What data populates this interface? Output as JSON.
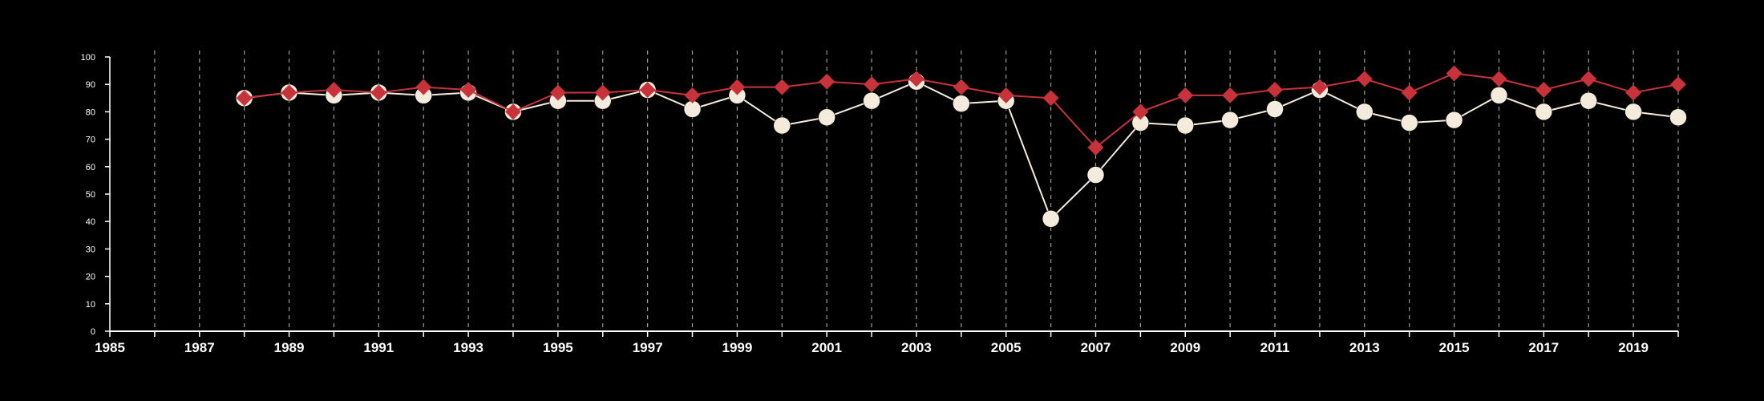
{
  "chart_data": {
    "type": "line",
    "title": "",
    "xlabel": "",
    "ylabel": "",
    "xlim": [
      1985,
      2020
    ],
    "ylim": [
      0,
      100
    ],
    "x_ticks": [
      "1985",
      "1987",
      "1989",
      "1991",
      "1993",
      "1995",
      "1997",
      "1999",
      "2001",
      "2003",
      "2005",
      "2007",
      "2009",
      "2011",
      "2013",
      "2015",
      "2017",
      "2019"
    ],
    "y_ticks": [
      "0",
      "10",
      "20",
      "30",
      "40",
      "50",
      "60",
      "70",
      "80",
      "90",
      "100"
    ],
    "grid": "vertical dashed lines at every year",
    "background": "#000000",
    "series": [
      {
        "color": "#c8323a",
        "marker": "diamond",
        "x": [
          1988,
          1989,
          1990,
          1991,
          1992,
          1993,
          1994,
          1995,
          1996,
          1997,
          1998,
          1999,
          2000,
          2001,
          2002,
          2003,
          2004,
          2005,
          2006,
          2007,
          2008,
          2009,
          2010,
          2011,
          2012,
          2013,
          2014,
          2015,
          2016,
          2017,
          2018,
          2019,
          2020
        ],
        "values": [
          85,
          87,
          88,
          87,
          89,
          88,
          80,
          87,
          87,
          88,
          86,
          89,
          89,
          91,
          90,
          92,
          89,
          86,
          85,
          67,
          80,
          86,
          86,
          88,
          89,
          92,
          87,
          94,
          92,
          88,
          92,
          87,
          90
        ]
      },
      {
        "color": "#f5ebdc",
        "marker": "circle",
        "x": [
          1988,
          1989,
          1990,
          1991,
          1992,
          1993,
          1994,
          1995,
          1996,
          1997,
          1998,
          1999,
          2000,
          2001,
          2002,
          2003,
          2004,
          2005,
          2006,
          2007,
          2008,
          2009,
          2010,
          2011,
          2012,
          2013,
          2014,
          2015,
          2016,
          2017,
          2018,
          2019,
          2020
        ],
        "values": [
          85,
          87,
          86,
          87,
          86,
          87,
          80,
          84,
          84,
          88,
          81,
          86,
          75,
          78,
          84,
          91,
          83,
          84,
          41,
          57,
          76,
          75,
          77,
          81,
          88,
          80,
          76,
          77,
          86,
          80,
          84,
          80,
          78
        ]
      }
    ]
  }
}
